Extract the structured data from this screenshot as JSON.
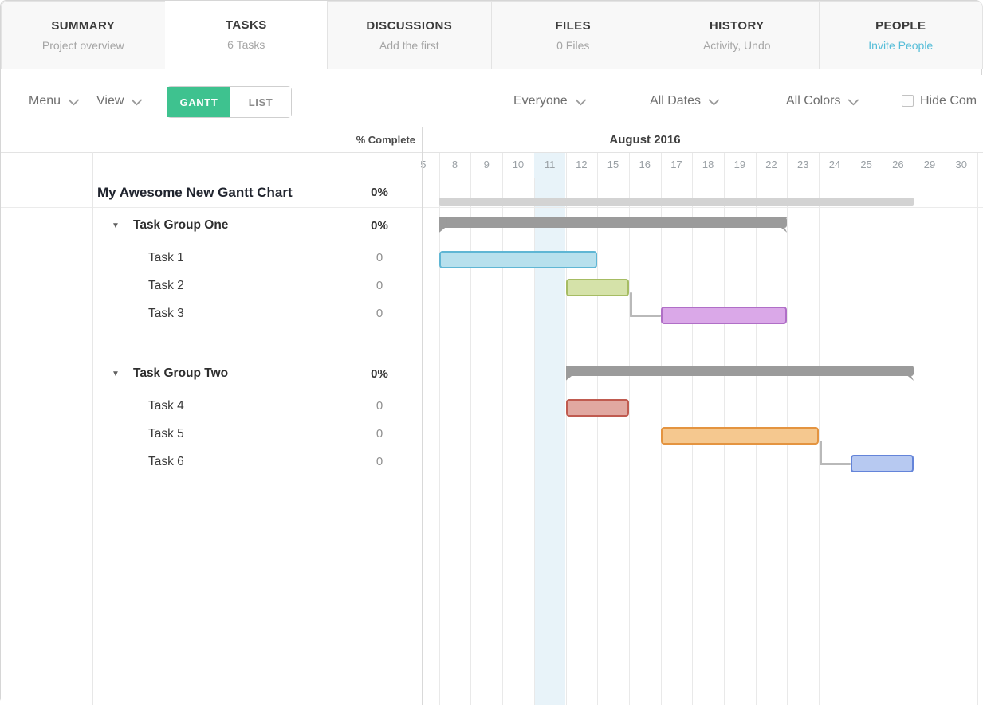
{
  "tabs": [
    {
      "title": "SUMMARY",
      "subtitle": "Project overview",
      "active": false
    },
    {
      "title": "TASKS",
      "subtitle": "6 Tasks",
      "active": true
    },
    {
      "title": "DISCUSSIONS",
      "subtitle": "Add the first",
      "active": false
    },
    {
      "title": "FILES",
      "subtitle": "0 Files",
      "active": false
    },
    {
      "title": "HISTORY",
      "subtitle": "Activity, Undo",
      "active": false
    },
    {
      "title": "PEOPLE",
      "subtitle": "Invite People",
      "active": false,
      "subtitle_accent": true
    }
  ],
  "toolbar": {
    "menu_label": "Menu",
    "view_label": "View",
    "gantt_label": "GANTT",
    "list_label": "LIST",
    "filters": [
      {
        "label": "Everyone"
      },
      {
        "label": "All Dates"
      },
      {
        "label": "All Colors"
      }
    ],
    "hide_completed_label": "Hide Com"
  },
  "table": {
    "percent_header": "% Complete",
    "month_header": "August 2016",
    "days": [
      "5",
      "8",
      "9",
      "10",
      "11",
      "12",
      "15",
      "16",
      "17",
      "18",
      "19",
      "22",
      "23",
      "24",
      "25",
      "26",
      "29",
      "30"
    ],
    "today_day": "11"
  },
  "gantt": {
    "project": {
      "name": "My Awesome New Gantt Chart",
      "percent": "0%",
      "start_day": "8",
      "end_day": "26",
      "bar_color": "#d3d3d3"
    },
    "groups": [
      {
        "name": "Task Group One",
        "percent": "0%",
        "start_day": "8",
        "end_day": "22",
        "bar_color": "#9b9b9b",
        "tasks": [
          {
            "name": "Task 1",
            "percent": "0",
            "start_day": "8",
            "end_day": "12",
            "fill": "#b7e0ed",
            "border": "#5fb6d4"
          },
          {
            "name": "Task 2",
            "percent": "0",
            "start_day": "12",
            "end_day": "15",
            "fill": "#d5e2a9",
            "border": "#a6bc63"
          },
          {
            "name": "Task 3",
            "percent": "0",
            "start_day": "17",
            "end_day": "22",
            "fill": "#daa8e8",
            "border": "#b06fc7"
          }
        ]
      },
      {
        "name": "Task Group Two",
        "percent": "0%",
        "start_day": "12",
        "end_day": "26",
        "bar_color": "#9b9b9b",
        "tasks": [
          {
            "name": "Task 4",
            "percent": "0",
            "start_day": "12",
            "end_day": "15",
            "fill": "#e1a8a1",
            "border": "#c05b50"
          },
          {
            "name": "Task 5",
            "percent": "0",
            "start_day": "17",
            "end_day": "23",
            "fill": "#f5c88f",
            "border": "#e49440"
          },
          {
            "name": "Task 6",
            "percent": "0",
            "start_day": "25",
            "end_day": "26",
            "fill": "#b7c9f1",
            "border": "#6484d9"
          }
        ]
      }
    ],
    "dependencies": [
      {
        "from": "Task 2",
        "to": "Task 3"
      },
      {
        "from": "Task 5",
        "to": "Task 6"
      }
    ]
  },
  "colors": {
    "accent_green": "#3ec28f",
    "invite_blue": "#55bdd8",
    "today_highlight": "#e8f3f9",
    "connector": "#b9b9b9"
  }
}
